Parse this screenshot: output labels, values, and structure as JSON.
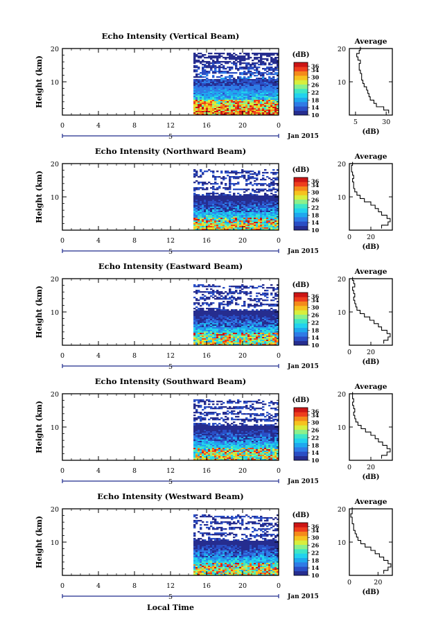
{
  "chart_data": {
    "type": "heatmap",
    "date_label": "Jan 2015",
    "xlabel": "Local Time",
    "ylabel": "Height (km)",
    "x_ticks": [
      "0",
      "4",
      "8",
      "12",
      "16",
      "20",
      "0"
    ],
    "xlim": [
      0,
      24
    ],
    "y_ticks": [
      "20",
      "10"
    ],
    "ylim": [
      0,
      20
    ],
    "day_marker": "5",
    "data_start_hour": 15,
    "colorbar": {
      "unit": "(dB)",
      "ticks": [
        "36",
        "34",
        "30",
        "26",
        "22",
        "18",
        "14",
        "10"
      ],
      "range": [
        10,
        38
      ],
      "colors": [
        "#262d8f",
        "#2a4ec5",
        "#2f7be6",
        "#1fa8ee",
        "#22d2ee",
        "#3fe6c6",
        "#8cf08a",
        "#d8ee3c",
        "#f6c21e",
        "#f48a1a",
        "#ee3d1d",
        "#cc1515"
      ]
    },
    "average_panel": {
      "title": "Average",
      "xlabel": "(dB)"
    },
    "beams": [
      {
        "title": "Echo Intensity (Vertical Beam)",
        "avg_x_ticks": [
          "5",
          "30"
        ],
        "avg_xlim": [
          0,
          35
        ],
        "avg_profile": [
          [
            1,
            32
          ],
          [
            2,
            28
          ],
          [
            3,
            22
          ],
          [
            4,
            20
          ],
          [
            5,
            17
          ],
          [
            6,
            16
          ],
          [
            7,
            15
          ],
          [
            8,
            14
          ],
          [
            9,
            12
          ],
          [
            10,
            11
          ],
          [
            11,
            10
          ],
          [
            12,
            10
          ],
          [
            13,
            9
          ],
          [
            14,
            8
          ],
          [
            15,
            8
          ],
          [
            16,
            9
          ],
          [
            17,
            7
          ],
          [
            18,
            6
          ],
          [
            19,
            8
          ],
          [
            20,
            9
          ]
        ]
      },
      {
        "title": "Echo Intensity (Northward Beam)",
        "avg_x_ticks": [
          "0",
          "20"
        ],
        "avg_xlim": [
          0,
          40
        ],
        "avg_profile": [
          [
            1,
            30
          ],
          [
            2,
            36
          ],
          [
            3,
            38
          ],
          [
            4,
            35
          ],
          [
            5,
            30
          ],
          [
            6,
            27
          ],
          [
            7,
            24
          ],
          [
            8,
            20
          ],
          [
            9,
            14
          ],
          [
            10,
            10
          ],
          [
            11,
            7
          ],
          [
            12,
            5
          ],
          [
            13,
            4
          ],
          [
            14,
            4
          ],
          [
            15,
            3
          ],
          [
            16,
            4
          ],
          [
            17,
            3
          ],
          [
            18,
            2
          ],
          [
            19,
            2
          ],
          [
            20,
            3
          ]
        ]
      },
      {
        "title": "Echo Intensity (Eastward Beam)",
        "avg_x_ticks": [
          "0",
          "20"
        ],
        "avg_xlim": [
          0,
          40
        ],
        "avg_profile": [
          [
            1,
            32
          ],
          [
            2,
            36
          ],
          [
            3,
            38
          ],
          [
            4,
            35
          ],
          [
            5,
            30
          ],
          [
            6,
            27
          ],
          [
            7,
            23
          ],
          [
            8,
            19
          ],
          [
            9,
            14
          ],
          [
            10,
            10
          ],
          [
            11,
            7
          ],
          [
            12,
            6
          ],
          [
            13,
            5
          ],
          [
            14,
            4
          ],
          [
            15,
            5
          ],
          [
            16,
            4
          ],
          [
            17,
            3
          ],
          [
            18,
            5
          ],
          [
            19,
            4
          ],
          [
            20,
            3
          ]
        ]
      },
      {
        "title": "Echo Intensity (Southward Beam)",
        "avg_x_ticks": [
          "0",
          "20"
        ],
        "avg_xlim": [
          0,
          40
        ],
        "avg_profile": [
          [
            1,
            30
          ],
          [
            2,
            35
          ],
          [
            3,
            38
          ],
          [
            4,
            35
          ],
          [
            5,
            31
          ],
          [
            6,
            27
          ],
          [
            7,
            24
          ],
          [
            8,
            20
          ],
          [
            9,
            15
          ],
          [
            10,
            11
          ],
          [
            11,
            8
          ],
          [
            12,
            6
          ],
          [
            13,
            5
          ],
          [
            14,
            4
          ],
          [
            15,
            5
          ],
          [
            16,
            4
          ],
          [
            17,
            3
          ],
          [
            18,
            4
          ],
          [
            19,
            3
          ],
          [
            20,
            3
          ]
        ]
      },
      {
        "title": "Echo Intensity (Westward Beam)",
        "avg_x_ticks": [
          "0",
          "20"
        ],
        "avg_xlim": [
          0,
          30
        ],
        "avg_profile": [
          [
            1,
            24
          ],
          [
            2,
            27
          ],
          [
            3,
            29
          ],
          [
            4,
            27
          ],
          [
            5,
            24
          ],
          [
            6,
            21
          ],
          [
            7,
            18
          ],
          [
            8,
            15
          ],
          [
            9,
            11
          ],
          [
            10,
            8
          ],
          [
            11,
            6
          ],
          [
            12,
            5
          ],
          [
            13,
            4
          ],
          [
            14,
            3
          ],
          [
            15,
            3
          ],
          [
            16,
            2
          ],
          [
            17,
            2
          ],
          [
            18,
            1
          ],
          [
            19,
            2
          ],
          [
            20,
            2
          ]
        ]
      }
    ]
  }
}
